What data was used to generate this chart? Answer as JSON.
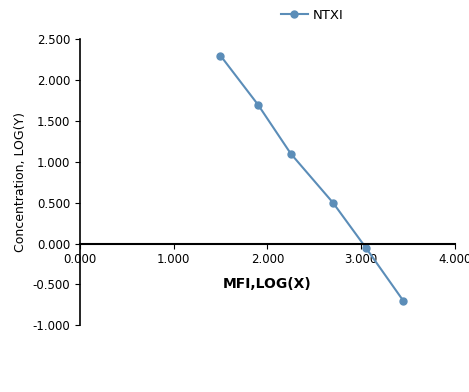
{
  "x": [
    1.5,
    1.9,
    2.25,
    2.7,
    3.05,
    3.45
  ],
  "y": [
    2.3,
    1.7,
    1.1,
    0.5,
    -0.05,
    -0.7
  ],
  "line_color": "#5b8db8",
  "marker": "o",
  "marker_color": "#5b8db8",
  "marker_size": 5,
  "legend_label": "NTXI",
  "xlabel": "MFI,LOG(X)",
  "ylabel": "Concentration, LOG(Y)",
  "xlim": [
    0.0,
    4.0
  ],
  "ylim": [
    -1.0,
    2.5
  ],
  "xticks": [
    0.0,
    1.0,
    2.0,
    3.0,
    4.0
  ],
  "yticks": [
    -1.0,
    -0.5,
    0.0,
    0.5,
    1.0,
    1.5,
    2.0,
    2.5
  ],
  "background_color": "#ffffff",
  "xlabel_fontsize": 10,
  "ylabel_fontsize": 9,
  "tick_fontsize": 8.5,
  "legend_fontsize": 9.5
}
